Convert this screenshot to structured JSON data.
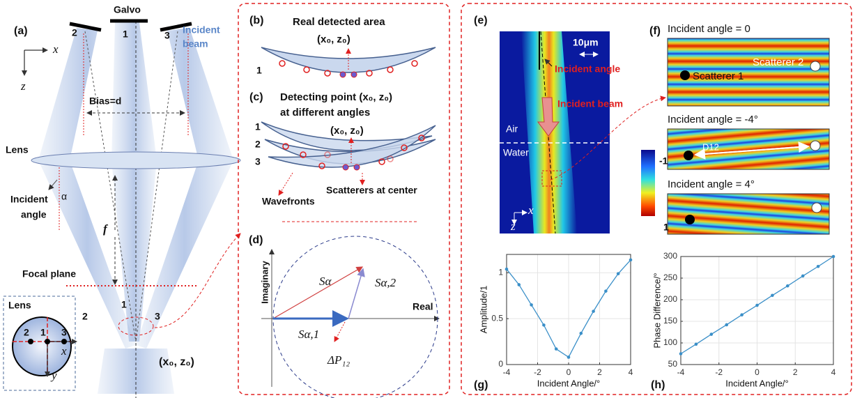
{
  "panel_a": {
    "label": "(a)",
    "galvo": "Galvo",
    "mirrors": [
      "2",
      "1",
      "3"
    ],
    "incident_beam": [
      "Incident",
      "beam"
    ],
    "x": "x",
    "z": "z",
    "bias": "Bias=d",
    "lens": "Lens",
    "incident_angle": [
      "Incident",
      "angle"
    ],
    "alpha": "α",
    "f": "f",
    "focal_plane": "Focal plane",
    "beam_numbers": [
      "1",
      "2",
      "3"
    ],
    "inset_lens": "Lens",
    "inset_points": [
      "2",
      "1",
      "3"
    ],
    "inset_x": "x",
    "inset_y": "y",
    "focus": "(x₀, z₀)"
  },
  "panel_b": {
    "label": "(b)",
    "title": "Real detected area",
    "point": "(x₀, z₀)",
    "number": "1"
  },
  "panel_c": {
    "label": "(c)",
    "title": [
      "Detecting point (x₀, z₀)",
      "at different angles"
    ],
    "point": "(x₀, z₀)",
    "numbers": [
      "1",
      "2",
      "3"
    ],
    "wavefronts": "Wavefronts",
    "scatterers": "Scatterers at center"
  },
  "panel_d": {
    "label": "(d)",
    "imaginary": "Imaginary",
    "real": "Real",
    "s_alpha": "Sα",
    "s_alpha2": "Sα,2",
    "s_alpha1": "Sα,1",
    "delta_p": "ΔP₁₂"
  },
  "panel_e": {
    "label": "(e)",
    "scale": "10μm",
    "incident_angle": "Incident angle",
    "incident_beam": "Incident beam",
    "air": "Air",
    "water": "Water",
    "x": "x",
    "z": "z"
  },
  "panel_f": {
    "label": "(f)",
    "titles": [
      "Incident angle = 0",
      "Incident angle = -4°",
      "Incident angle = 4°"
    ],
    "scatterer1": "Scatterer 1",
    "scatterer2": "Scatterer 2",
    "d12": "D12",
    "colorbar_ticks": [
      -1,
      1
    ]
  },
  "chart_data": [
    {
      "type": "line",
      "panel_label": "(g)",
      "xlabel": "Incident Angle/°",
      "ylabel": "Amplitude/1",
      "x": [
        -4,
        -3.2,
        -2.4,
        -1.6,
        -0.8,
        0,
        0.8,
        1.6,
        2.4,
        3.2,
        4
      ],
      "series": [
        {
          "color": "#3a8fc8",
          "values": [
            1.04,
            0.87,
            0.65,
            0.43,
            0.17,
            0.08,
            0.34,
            0.58,
            0.8,
            0.99,
            1.14
          ]
        }
      ],
      "xlim": [
        -4,
        4
      ],
      "ylim": [
        0,
        1.2
      ],
      "xticks": [
        -4,
        -2,
        0,
        2,
        4
      ],
      "yticks": [
        0,
        0.5,
        1
      ],
      "grid": true
    },
    {
      "type": "line",
      "panel_label": "(h)",
      "xlabel": "Incident Angle/°",
      "ylabel": "Phase Difference/°",
      "x": [
        -4,
        -3.2,
        -2.4,
        -1.6,
        -0.8,
        0,
        0.8,
        1.6,
        2.4,
        3.2,
        4
      ],
      "series": [
        {
          "color": "#3a8fc8",
          "values": [
            75,
            97,
            120,
            142,
            165,
            187,
            210,
            232,
            255,
            277,
            300
          ]
        }
      ],
      "xlim": [
        -4,
        4
      ],
      "ylim": [
        50,
        300
      ],
      "xticks": [
        -4,
        -2,
        0,
        2,
        4
      ],
      "yticks": [
        50,
        100,
        150,
        200,
        250,
        300
      ],
      "grid": true
    }
  ]
}
